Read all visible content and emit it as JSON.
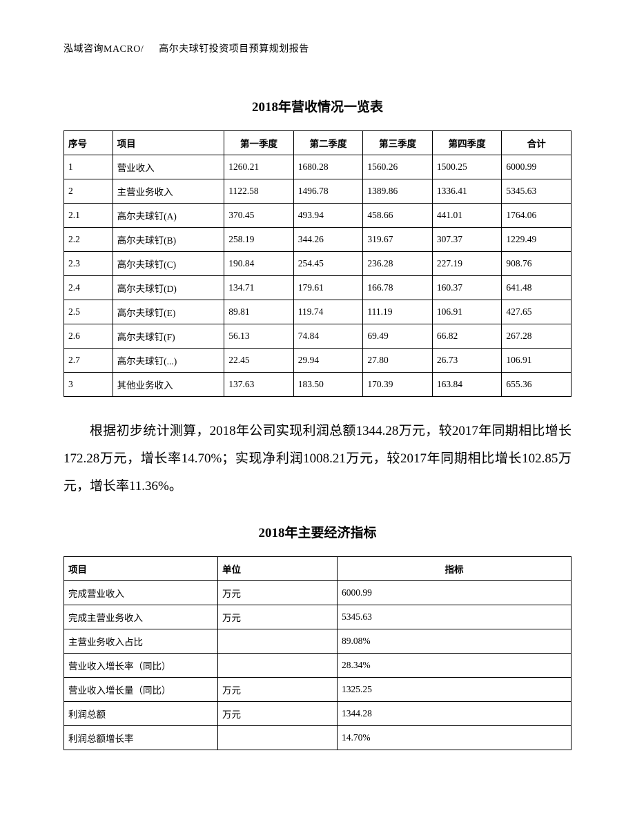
{
  "header": {
    "brand": "泓域咨询MACRO/",
    "title": "高尔夫球钉投资项目预算规划报告"
  },
  "table1": {
    "title": "2018年营收情况一览表",
    "columns": [
      "序号",
      "项目",
      "第一季度",
      "第二季度",
      "第三季度",
      "第四季度",
      "合计"
    ],
    "rows": [
      [
        "1",
        "营业收入",
        "1260.21",
        "1680.28",
        "1560.26",
        "1500.25",
        "6000.99"
      ],
      [
        "2",
        "主营业务收入",
        "1122.58",
        "1496.78",
        "1389.86",
        "1336.41",
        "5345.63"
      ],
      [
        "2.1",
        "高尔夫球钉(A)",
        "370.45",
        "493.94",
        "458.66",
        "441.01",
        "1764.06"
      ],
      [
        "2.2",
        "高尔夫球钉(B)",
        "258.19",
        "344.26",
        "319.67",
        "307.37",
        "1229.49"
      ],
      [
        "2.3",
        "高尔夫球钉(C)",
        "190.84",
        "254.45",
        "236.28",
        "227.19",
        "908.76"
      ],
      [
        "2.4",
        "高尔夫球钉(D)",
        "134.71",
        "179.61",
        "166.78",
        "160.37",
        "641.48"
      ],
      [
        "2.5",
        "高尔夫球钉(E)",
        "89.81",
        "119.74",
        "111.19",
        "106.91",
        "427.65"
      ],
      [
        "2.6",
        "高尔夫球钉(F)",
        "56.13",
        "74.84",
        "69.49",
        "66.82",
        "267.28"
      ],
      [
        "2.7",
        "高尔夫球钉(...)",
        "22.45",
        "29.94",
        "27.80",
        "26.73",
        "106.91"
      ],
      [
        "3",
        "其他业务收入",
        "137.63",
        "183.50",
        "170.39",
        "163.84",
        "655.36"
      ]
    ]
  },
  "paragraph": "根据初步统计测算，2018年公司实现利润总额1344.28万元，较2017年同期相比增长172.28万元，增长率14.70%；实现净利润1008.21万元，较2017年同期相比增长102.85万元，增长率11.36%。",
  "table2": {
    "title": "2018年主要经济指标",
    "columns": [
      "项目",
      "单位",
      "指标"
    ],
    "rows": [
      [
        "完成营业收入",
        "万元",
        "6000.99"
      ],
      [
        "完成主营业务收入",
        "万元",
        "5345.63"
      ],
      [
        "主营业务收入占比",
        "",
        "89.08%"
      ],
      [
        "营业收入增长率（同比）",
        "",
        "28.34%"
      ],
      [
        "营业收入增长量（同比）",
        "万元",
        "1325.25"
      ],
      [
        "利润总额",
        "万元",
        "1344.28"
      ],
      [
        "利润总额增长率",
        "",
        "14.70%"
      ]
    ]
  }
}
